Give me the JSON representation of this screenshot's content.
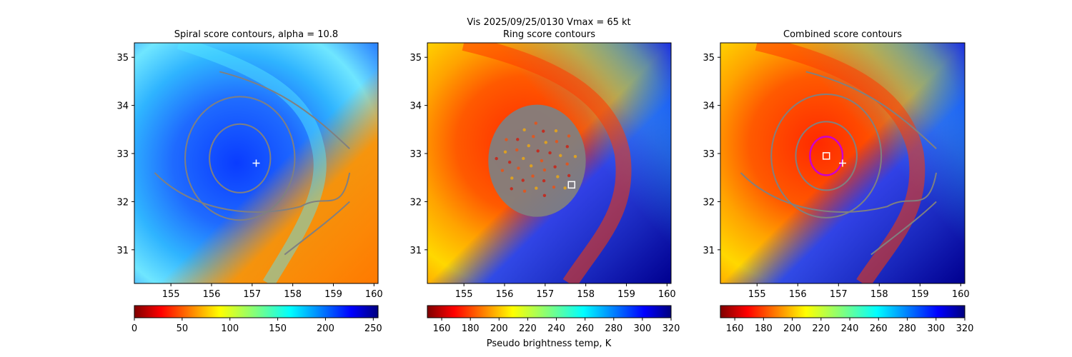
{
  "suptitle": "Vis  2025/09/25/0130    Vmax = 65 kt",
  "colorbar_label": "Pseudo brightness temp, K",
  "chart_data": [
    {
      "type": "heatmap",
      "title": "Spiral score contours, alpha = 10.8",
      "xlim": [
        154.1,
        160.1
      ],
      "ylim": [
        30.3,
        35.3
      ],
      "xticks": [
        155,
        156,
        157,
        158,
        159,
        160
      ],
      "yticks": [
        31,
        32,
        33,
        34,
        35
      ],
      "colormap": "jet",
      "colorbar": {
        "range": [
          0,
          255
        ],
        "ticks": [
          0,
          50,
          100,
          150,
          200,
          250
        ]
      },
      "center_marker": {
        "shape": "plus",
        "color": "#ffffff",
        "x": 157.1,
        "y": 32.8
      },
      "contour_color": "#808080"
    },
    {
      "type": "heatmap",
      "title": "Ring score contours",
      "xlim": [
        154.1,
        160.1
      ],
      "ylim": [
        30.3,
        35.3
      ],
      "xticks": [
        155,
        156,
        157,
        158,
        159,
        160
      ],
      "yticks": [
        31,
        32,
        33,
        34,
        35
      ],
      "colormap": "jet_r",
      "colorbar": {
        "range": [
          150,
          320
        ],
        "ticks": [
          160,
          180,
          200,
          220,
          240,
          260,
          280,
          300,
          320
        ]
      },
      "center_marker": {
        "shape": "square",
        "color": "#ffffff",
        "x": 157.65,
        "y": 32.35
      },
      "ring_overlay": {
        "color": "#808080",
        "x": 156.8,
        "y": 32.85,
        "radius_deg": 1.2
      }
    },
    {
      "type": "heatmap",
      "title": "Combined score contours",
      "xlim": [
        154.1,
        160.1
      ],
      "ylim": [
        30.3,
        35.3
      ],
      "xticks": [
        155,
        156,
        157,
        158,
        159,
        160
      ],
      "yticks": [
        31,
        32,
        33,
        34,
        35
      ],
      "colormap": "jet_r",
      "colorbar": {
        "range": [
          150,
          320
        ],
        "ticks": [
          160,
          180,
          200,
          220,
          240,
          260,
          280,
          300,
          320
        ]
      },
      "center_marker": {
        "shape": "square",
        "color": "#ffffff",
        "x": 156.7,
        "y": 32.95
      },
      "plus_marker": {
        "shape": "plus",
        "color": "#ffffff",
        "x": 157.1,
        "y": 32.8
      },
      "ring_circle": {
        "color": "#cc00cc",
        "x": 156.7,
        "y": 32.95,
        "radius_deg": 0.4
      },
      "contour_color": "#808080"
    }
  ]
}
